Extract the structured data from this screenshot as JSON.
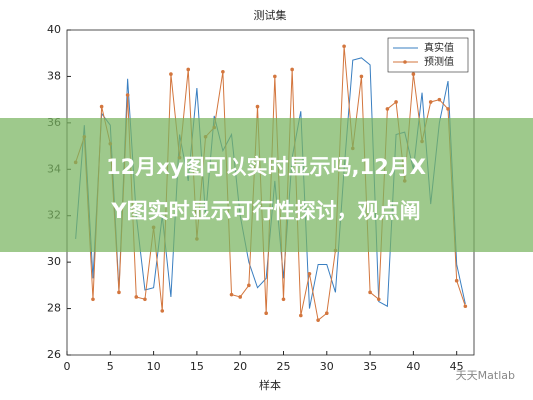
{
  "chart_data": {
    "type": "line",
    "title": "测试集",
    "x_label": "样本",
    "x": [
      1,
      2,
      3,
      4,
      5,
      6,
      7,
      8,
      9,
      10,
      11,
      12,
      13,
      14,
      15,
      16,
      17,
      18,
      19,
      20,
      21,
      22,
      23,
      24,
      25,
      26,
      27,
      28,
      29,
      30,
      31,
      32,
      33,
      34,
      35,
      36,
      37,
      38,
      39,
      40,
      41,
      42,
      43,
      44,
      45,
      46
    ],
    "series": [
      {
        "name": "真实值",
        "color": "#3a7fc1",
        "marker": false,
        "values": [
          31.0,
          35.9,
          29.3,
          36.4,
          35.9,
          28.8,
          37.9,
          32.0,
          28.8,
          28.9,
          32.0,
          28.5,
          35.5,
          33.5,
          37.5,
          32.0,
          36.3,
          34.8,
          35.5,
          32.0,
          30.0,
          28.9,
          29.3,
          33.5,
          29.3,
          34.5,
          36.5,
          28.0,
          29.9,
          29.9,
          28.7,
          34.0,
          38.7,
          38.8,
          38.5,
          28.3,
          28.1,
          35.5,
          35.6,
          34.0,
          37.3,
          32.5,
          36.0,
          37.8,
          29.9,
          28.2
        ]
      },
      {
        "name": "预测值",
        "color": "#d3763e",
        "marker": true,
        "values": [
          34.3,
          35.4,
          28.4,
          36.7,
          35.1,
          28.7,
          37.2,
          28.5,
          28.4,
          31.5,
          27.9,
          38.1,
          34.5,
          38.3,
          31.0,
          35.4,
          35.8,
          38.2,
          28.6,
          28.5,
          29.0,
          36.7,
          27.8,
          38.0,
          28.4,
          38.3,
          27.7,
          29.5,
          27.5,
          27.8,
          30.5,
          39.3,
          34.9,
          38.0,
          28.7,
          28.4,
          36.6,
          36.9,
          33.5,
          38.1,
          35.2,
          36.9,
          37.0,
          36.6,
          29.2,
          28.1
        ]
      }
    ],
    "xlim": [
      0,
      47
    ],
    "ylim": [
      26,
      40
    ],
    "xticks": [
      0,
      5,
      10,
      15,
      20,
      25,
      30,
      35,
      40,
      45
    ],
    "yticks": [
      26,
      28,
      30,
      32,
      34,
      36,
      38,
      40
    ],
    "legend": "upper right"
  },
  "banner": {
    "lines": [
      "12月xy图可以实时显示吗,12月X",
      "Y图实时显示可行性探讨，观点阐"
    ]
  },
  "watermark": "天天Matlab"
}
